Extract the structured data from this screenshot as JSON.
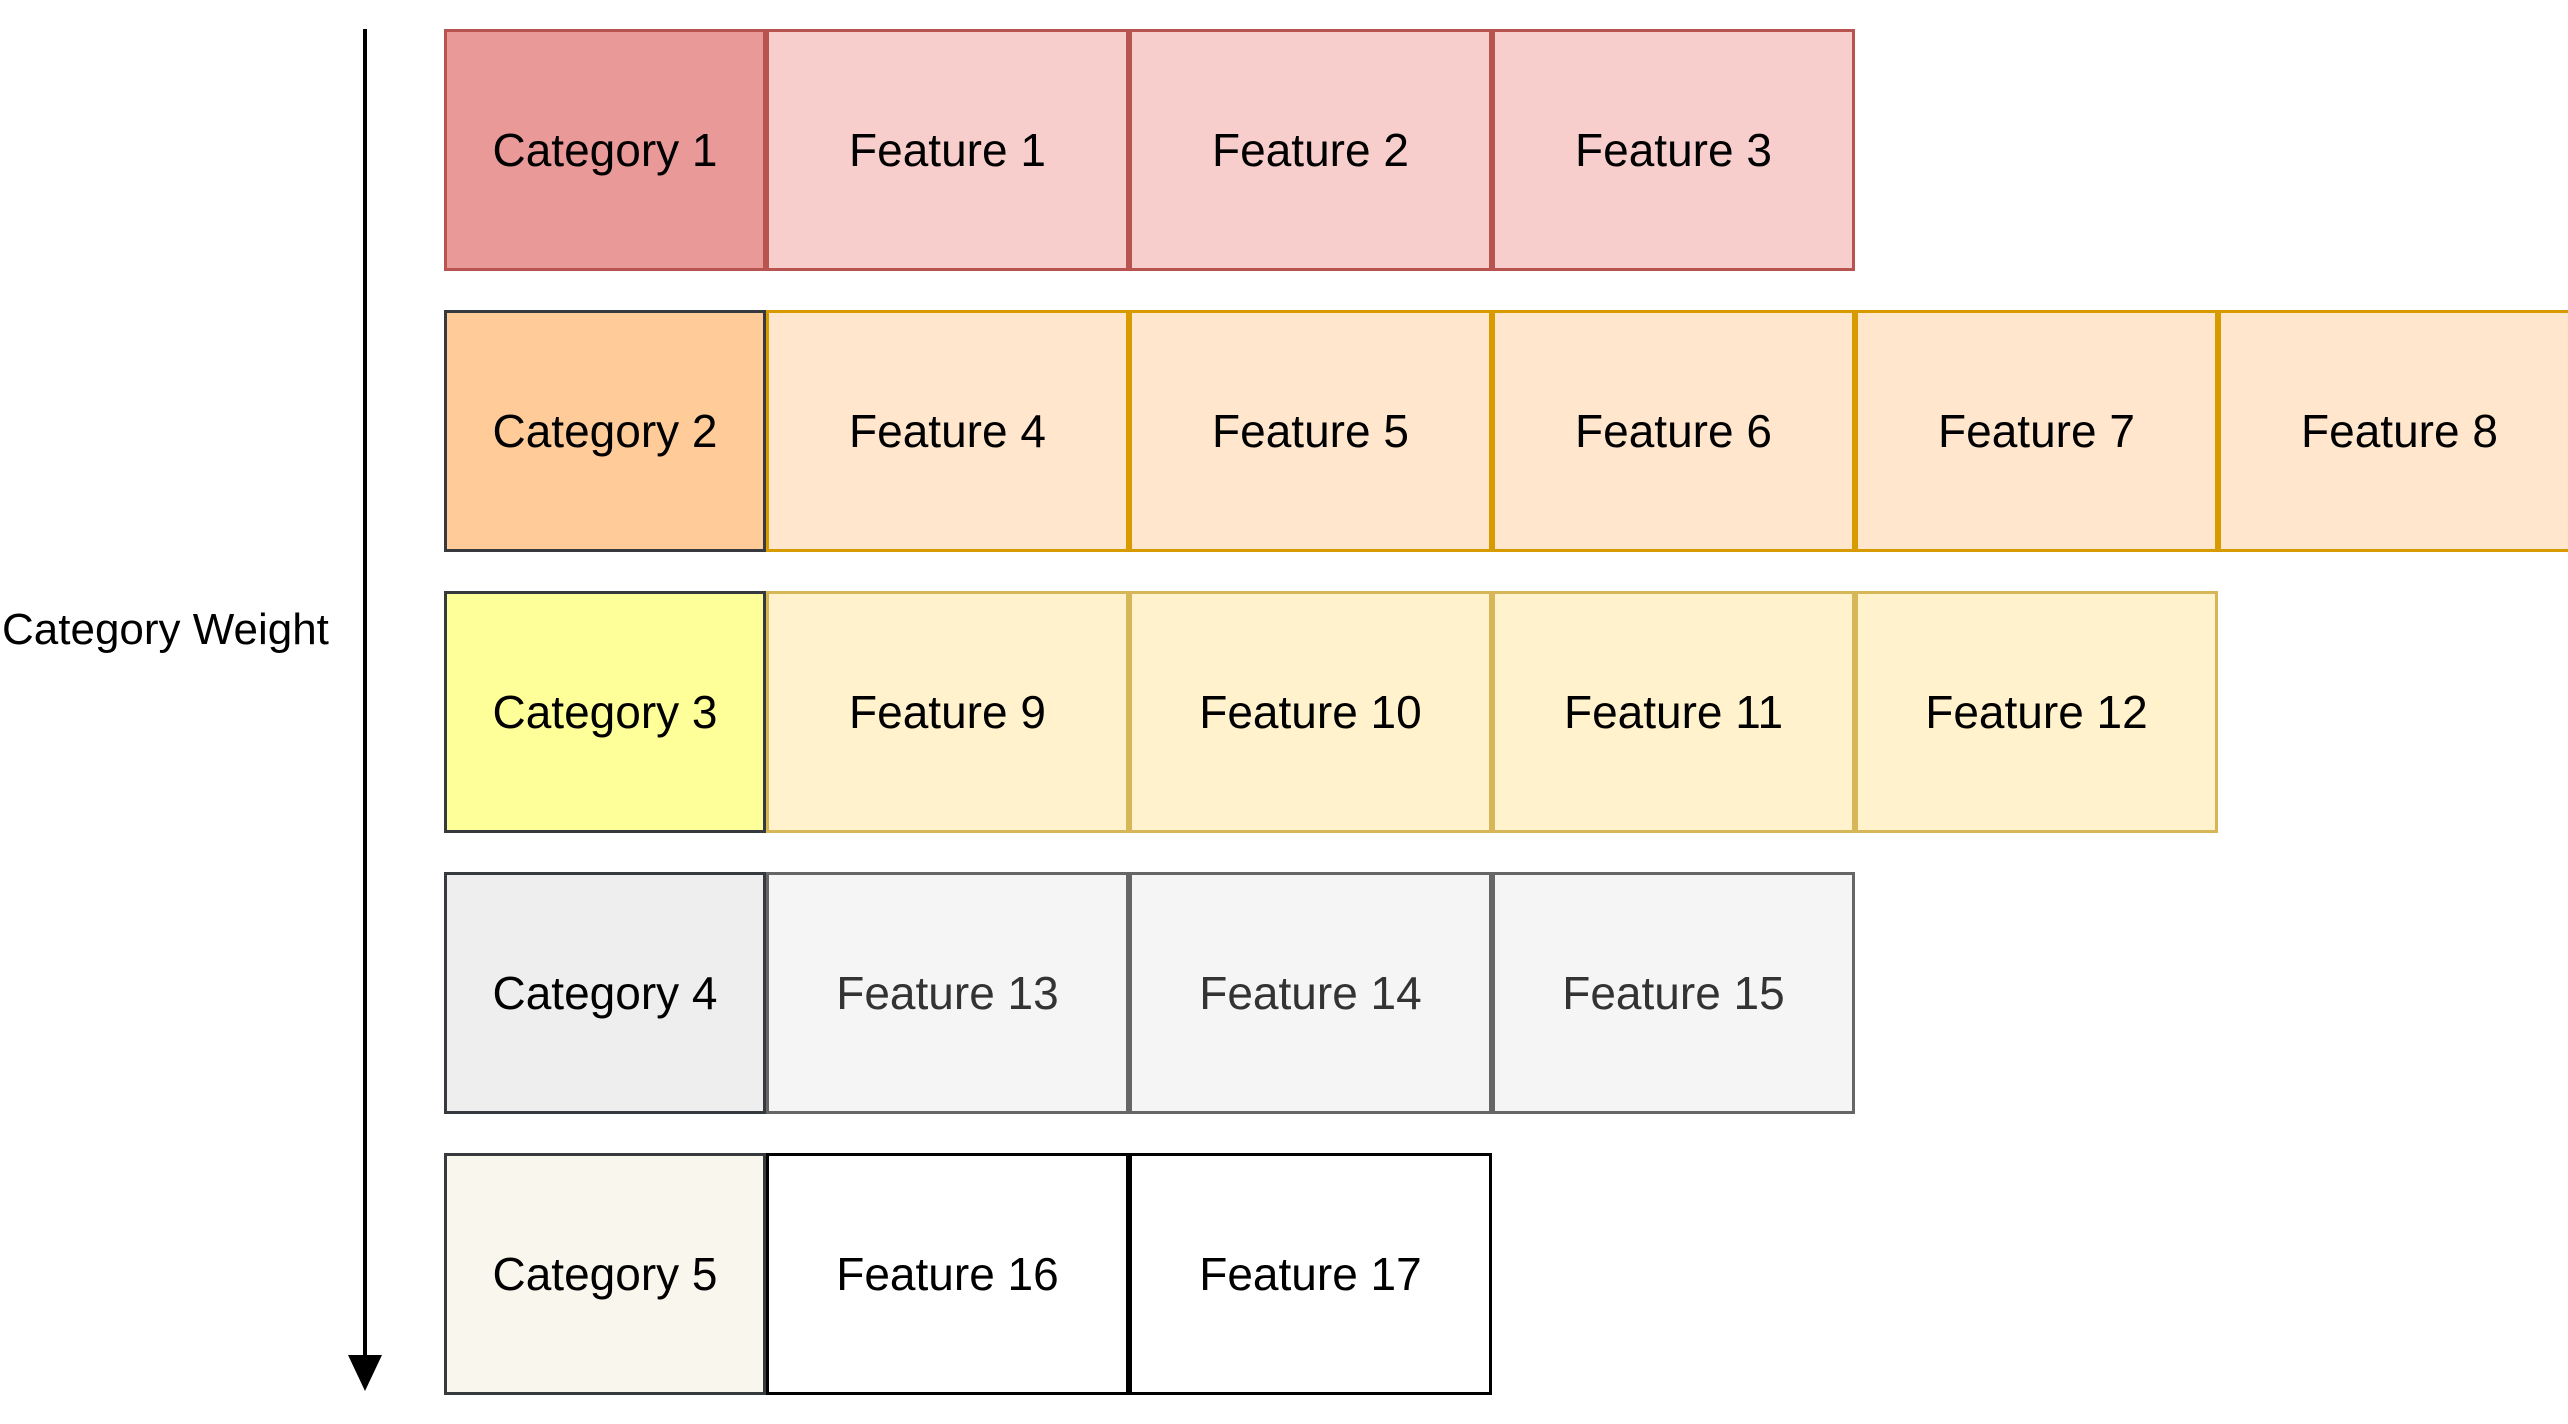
{
  "axis": {
    "label": "Category Weight"
  },
  "rows": [
    {
      "category": "Category 1",
      "category_fill": "#ea9999",
      "category_stroke": "#b85450",
      "feature_fill": "#f8cecc",
      "feature_stroke": "#b85450",
      "feature_text_color": "#000000",
      "features": [
        "Feature 1",
        "Feature 2",
        "Feature 3"
      ]
    },
    {
      "category": "Category 2",
      "category_fill": "#ffcc99",
      "category_stroke": "#36393d",
      "feature_fill": "#ffe6cc",
      "feature_stroke": "#d79b00",
      "feature_text_color": "#000000",
      "features": [
        "Feature 4",
        "Feature 5",
        "Feature 6",
        "Feature 7",
        "Feature 8"
      ]
    },
    {
      "category": "Category 3",
      "category_fill": "#ffff99",
      "category_stroke": "#36393d",
      "feature_fill": "#fff2cc",
      "feature_stroke": "#d6b656",
      "feature_text_color": "#000000",
      "features": [
        "Feature 9",
        "Feature 10",
        "Feature 11",
        "Feature 12"
      ]
    },
    {
      "category": "Category 4",
      "category_fill": "#eeeeee",
      "category_stroke": "#36393d",
      "feature_fill": "#f5f5f5",
      "feature_stroke": "#666666",
      "feature_text_color": "#333333",
      "features": [
        "Feature 13",
        "Feature 14",
        "Feature 15"
      ]
    },
    {
      "category": "Category 5",
      "category_fill": "#f9f7ed",
      "category_stroke": "#36393d",
      "feature_fill": "#ffffff",
      "feature_stroke": "#000000",
      "feature_text_color": "#000000",
      "features": [
        "Feature 16",
        "Feature 17"
      ]
    }
  ]
}
